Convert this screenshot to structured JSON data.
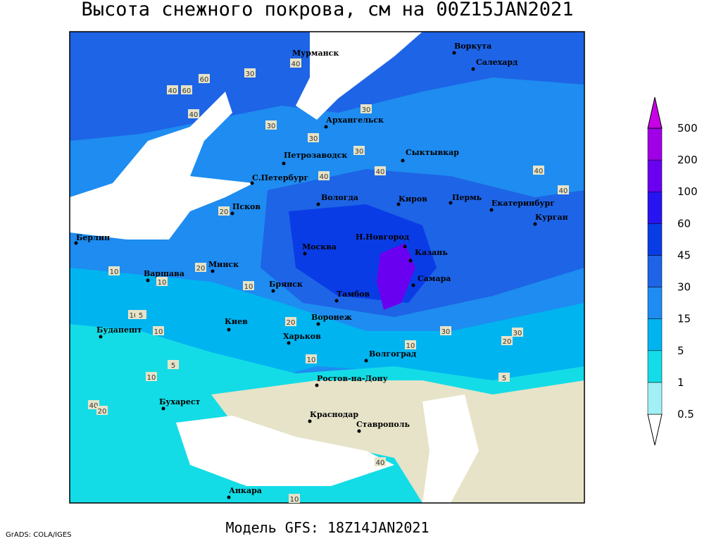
{
  "header": {
    "title": "Высота снежного покрова, см на 00Z15JAN2021"
  },
  "colorbar": {
    "levels": [
      0.5,
      1,
      5,
      15,
      30,
      45,
      60,
      100,
      200,
      500
    ],
    "colors": [
      "#ffffff",
      "#a0f0f5",
      "#14dce6",
      "#00b4f0",
      "#1e8cf0",
      "#1e64e6",
      "#0a3ce6",
      "#2814f0",
      "#6a00f0",
      "#a000e6",
      "#c800e6"
    ]
  },
  "cities": [
    "Мурманск",
    "Воркута",
    "Салехард",
    "Архангельск",
    "Сыктывкар",
    "Петрозаводск",
    "С.Петербург",
    "Вологда",
    "Киров",
    "Пермь",
    "Екатеринбург",
    "Курган",
    "Псков",
    "Берлин",
    "Москва",
    "Н.Новгород",
    "Казань",
    "Варшава",
    "Минск",
    "Брянск",
    "Тамбов",
    "Самара",
    "Киев",
    "Воронеж",
    "Харьков",
    "Волгоград",
    "Будапешт",
    "Ростов-на-Дону",
    "Бухарест",
    "Краснодар",
    "Ставрополь",
    "Анкара"
  ],
  "contour_labels": [
    "30",
    "40",
    "60",
    "40",
    "30",
    "30",
    "40",
    "60",
    "40",
    "30",
    "30",
    "40",
    "40",
    "40",
    "20",
    "20",
    "10",
    "10",
    "10",
    "10",
    "5",
    "10",
    "20",
    "30",
    "30",
    "20",
    "10",
    "5",
    "10",
    "5",
    "10",
    "40",
    "20",
    "40",
    "10"
  ],
  "footer": {
    "credit": "GrADS: COLA/IGES",
    "model": "Модель GFS: 18Z14JAN2021"
  }
}
